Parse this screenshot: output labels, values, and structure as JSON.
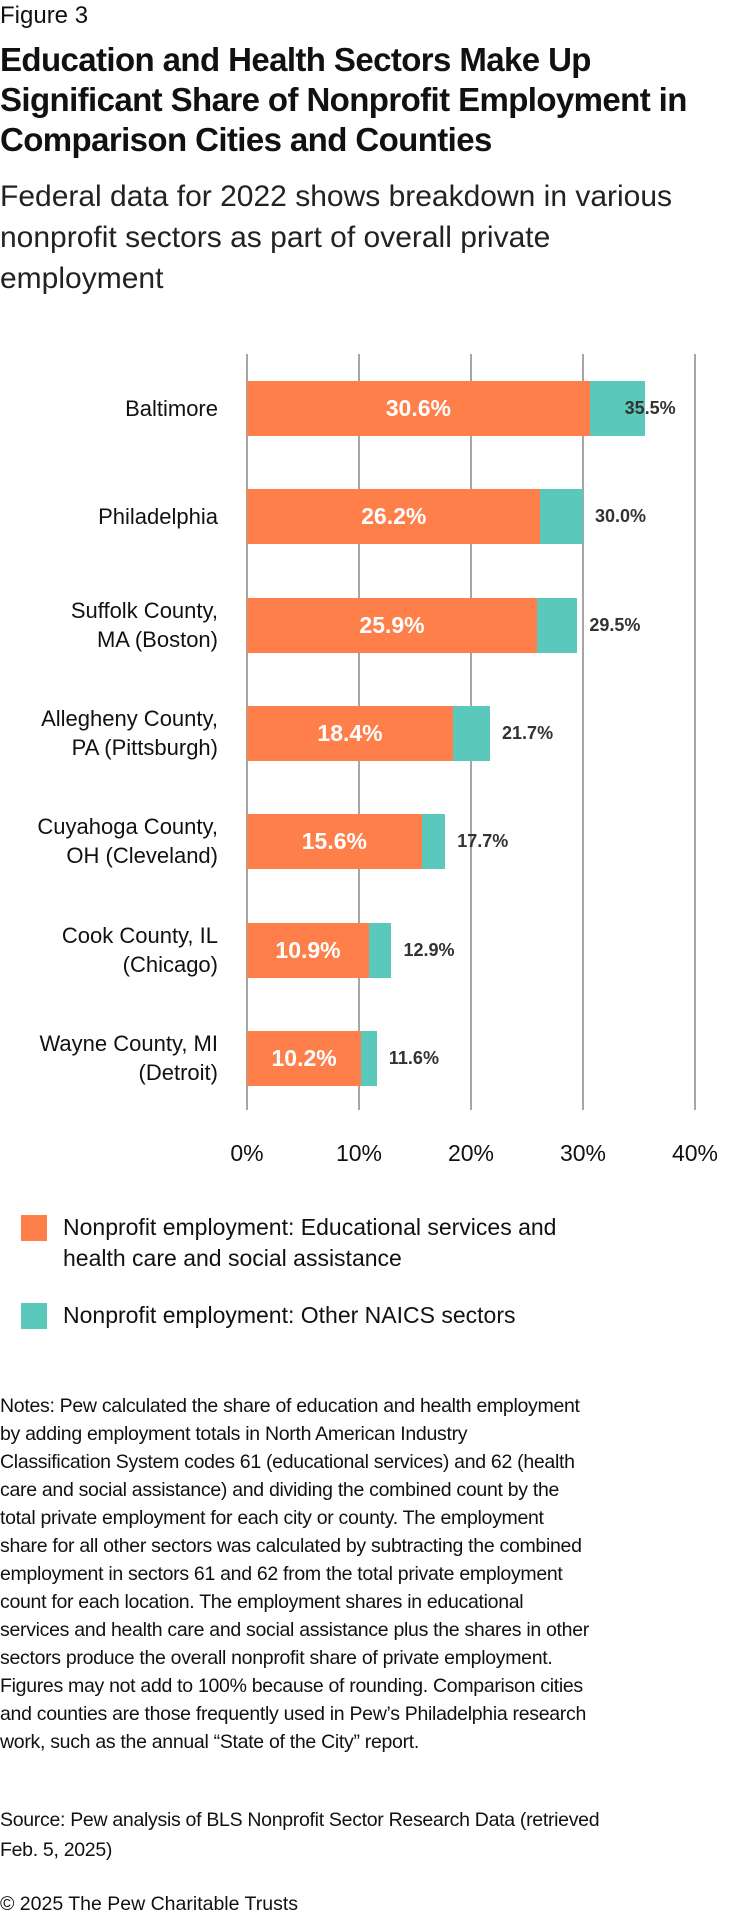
{
  "figure_label": "Figure 3",
  "title": "Education and Health Sectors Make Up Significant Share of Nonprofit Employment in Comparison Cities and Counties",
  "subtitle": "Federal data for 2022 shows breakdown in various nonprofit sectors as part of overall private employment",
  "chart_data": {
    "type": "bar",
    "orientation": "horizontal",
    "stacked": true,
    "categories": [
      [
        "Baltimore"
      ],
      [
        "Philadelphia"
      ],
      [
        "Suffolk County,",
        "MA (Boston)"
      ],
      [
        "Allegheny County,",
        "PA (Pittsburgh)"
      ],
      [
        "Cuyahoga County,",
        "OH (Cleveland)"
      ],
      [
        "Cook County, IL",
        "(Chicago)"
      ],
      [
        "Wayne County, MI",
        "(Detroit)"
      ]
    ],
    "series": [
      {
        "name": "Nonprofit employment: Educational services and health care and social assistance",
        "color": "#FF7F4A",
        "values": [
          30.6,
          26.2,
          25.9,
          18.4,
          15.6,
          10.9,
          10.2
        ],
        "labels": [
          "30.6%",
          "26.2%",
          "25.9%",
          "18.4%",
          "15.6%",
          "10.9%",
          "10.2%"
        ]
      },
      {
        "name": "Nonprofit employment: Other NAICS sectors",
        "color": "#5BC8BC",
        "values": [
          4.9,
          3.8,
          3.6,
          3.3,
          2.1,
          2.0,
          1.4
        ]
      }
    ],
    "totals": [
      35.5,
      30.0,
      29.5,
      21.7,
      17.7,
      12.9,
      11.6
    ],
    "total_labels": [
      "35.5%",
      "30.0%",
      "29.5%",
      "21.7%",
      "17.7%",
      "12.9%",
      "11.6%"
    ],
    "xlim": [
      0,
      40
    ],
    "xticks": [
      "0%",
      "10%",
      "20%",
      "30%",
      "40%"
    ],
    "grid": true,
    "legend_position": "bottom"
  },
  "legend": [
    {
      "lines": [
        "Nonprofit employment: Educational services and",
        "health care and social assistance"
      ]
    },
    {
      "lines": [
        "Nonprofit employment: Other NAICS sectors"
      ]
    }
  ],
  "notes": [
    "Notes: Pew calculated the share of education and health employment",
    "by adding employment totals in North American Industry",
    "Classification System codes 61 (educational services) and 62 (health",
    "care and social assistance) and dividing the combined count by the",
    "total private employment for each city or county. The employment",
    "share for all other sectors was calculated by subtracting the combined",
    "employment in sectors 61 and 62 from the total private employment",
    "count for each location. The employment shares in educational",
    "services and health care and social assistance plus the shares in other",
    "sectors produce the overall nonprofit share of private employment.",
    "Figures may not add to 100% because of rounding. Comparison cities",
    "and counties are those frequently used in Pew’s Philadelphia research",
    "work, such as the annual “State of the City” report."
  ],
  "source": [
    "Source: Pew analysis of BLS Nonprofit Sector Research Data (retrieved",
    "Feb. 5, 2025)"
  ],
  "copyright": "© 2025 The Pew Charitable Trusts"
}
